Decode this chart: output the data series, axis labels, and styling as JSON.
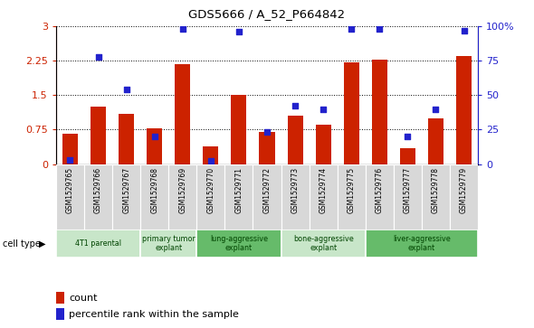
{
  "title": "GDS5666 / A_52_P664842",
  "samples": [
    "GSM1529765",
    "GSM1529766",
    "GSM1529767",
    "GSM1529768",
    "GSM1529769",
    "GSM1529770",
    "GSM1529771",
    "GSM1529772",
    "GSM1529773",
    "GSM1529774",
    "GSM1529775",
    "GSM1529776",
    "GSM1529777",
    "GSM1529778",
    "GSM1529779"
  ],
  "count_values": [
    0.65,
    1.25,
    1.1,
    0.77,
    2.17,
    0.38,
    1.5,
    0.7,
    1.05,
    0.85,
    2.22,
    2.28,
    0.35,
    1.0,
    2.35
  ],
  "percentile_values": [
    3,
    78,
    54,
    20,
    98,
    2,
    96,
    23,
    42,
    40,
    98,
    98,
    20,
    40,
    97
  ],
  "ylim_left": [
    0,
    3.0
  ],
  "ylim_right": [
    0,
    100
  ],
  "yticks_left": [
    0,
    0.75,
    1.5,
    2.25,
    3.0
  ],
  "yticks_right": [
    0,
    25,
    50,
    75,
    100
  ],
  "bar_color": "#cc2200",
  "scatter_color": "#2222cc",
  "ct_groups": [
    {
      "label": "4T1 parental",
      "cols": [
        0,
        1,
        2
      ],
      "color": "#c8e6c9"
    },
    {
      "label": "primary tumor\nexplant",
      "cols": [
        3,
        4
      ],
      "color": "#c8e6c9"
    },
    {
      "label": "lung-aggressive\nexplant",
      "cols": [
        5,
        6,
        7
      ],
      "color": "#66bb6a"
    },
    {
      "label": "bone-aggressive\nexplant",
      "cols": [
        8,
        9,
        10
      ],
      "color": "#c8e6c9"
    },
    {
      "label": "liver-aggressive\nexplant",
      "cols": [
        11,
        12,
        13,
        14
      ],
      "color": "#66bb6a"
    }
  ],
  "legend_count_label": "count",
  "legend_pct_label": "percentile rank within the sample",
  "bar_width": 0.55
}
